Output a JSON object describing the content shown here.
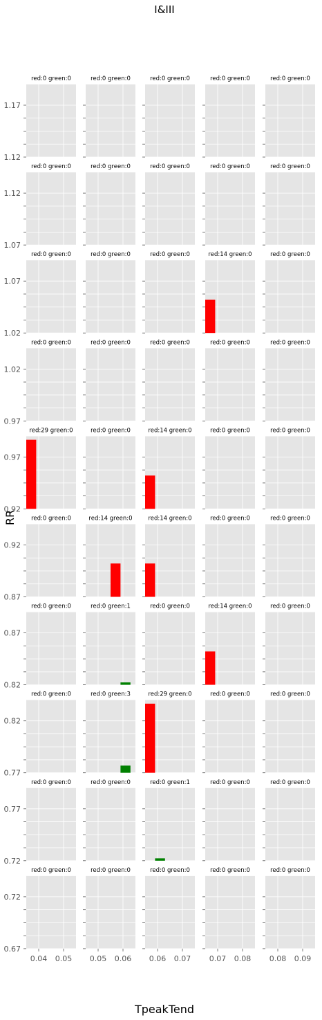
{
  "chart_data": {
    "type": "bar",
    "title": "I&III",
    "xlabel": "TpeakTend",
    "ylabel": "RR",
    "grid": true,
    "colors": {
      "red": "#ff0000",
      "green": "#008000",
      "panel_bg": "#e5e5e5"
    },
    "columns": [
      {
        "xlim": [
          0.035,
          0.055
        ],
        "ticks": [
          0.04,
          0.05
        ],
        "tick_labels": [
          "0.04",
          "0.05"
        ],
        "bar_x": 0.035
      },
      {
        "xlim": [
          0.045,
          0.065
        ],
        "ticks": [
          0.05,
          0.06
        ],
        "tick_labels": [
          "0.05",
          "0.06"
        ],
        "bar_x": 0.055
      },
      {
        "xlim": [
          0.055,
          0.075
        ],
        "ticks": [
          0.06,
          0.07
        ],
        "tick_labels": [
          "0.06",
          "0.07"
        ],
        "bar_x": 0.055
      },
      {
        "xlim": [
          0.065,
          0.085
        ],
        "ticks": [
          0.07,
          0.08
        ],
        "tick_labels": [
          "0.07",
          "0.08"
        ],
        "bar_x": 0.065
      },
      {
        "xlim": [
          0.075,
          0.095
        ],
        "ticks": [
          0.08,
          0.09
        ],
        "tick_labels": [
          "0.08",
          "0.09"
        ],
        "bar_x": 0.075
      }
    ],
    "bar_width": 0.004,
    "rows": [
      {
        "ylim": [
          1.12,
          1.19
        ],
        "tick_labels": [
          "1.12",
          "1.17"
        ],
        "ticks": [
          1.12,
          1.17
        ],
        "panels": [
          {
            "title": "red:0 green:0",
            "red": 0,
            "green": 0
          },
          {
            "title": "red:0 green:0",
            "red": 0,
            "green": 0
          },
          {
            "title": "red:0 green:0",
            "red": 0,
            "green": 0
          },
          {
            "title": "red:0 green:0",
            "red": 0,
            "green": 0
          },
          {
            "title": "red:0 green:0",
            "red": 0,
            "green": 0
          }
        ]
      },
      {
        "ylim": [
          1.07,
          1.14
        ],
        "tick_labels": [
          "1.07",
          "1.12"
        ],
        "ticks": [
          1.07,
          1.12
        ],
        "panels": [
          {
            "title": "red:0 green:0",
            "red": 0,
            "green": 0
          },
          {
            "title": "red:0 green:0",
            "red": 0,
            "green": 0
          },
          {
            "title": "red:0 green:0",
            "red": 0,
            "green": 0
          },
          {
            "title": "red:0 green:0",
            "red": 0,
            "green": 0
          },
          {
            "title": "red:0 green:0",
            "red": 0,
            "green": 0
          }
        ]
      },
      {
        "ylim": [
          1.02,
          1.09
        ],
        "tick_labels": [
          "1.02",
          "1.07"
        ],
        "ticks": [
          1.02,
          1.07
        ],
        "panels": [
          {
            "title": "red:0 green:0",
            "red": 0,
            "green": 0
          },
          {
            "title": "red:0 green:0",
            "red": 0,
            "green": 0
          },
          {
            "title": "red:0 green:0",
            "red": 0,
            "green": 0
          },
          {
            "title": "red:14 green:0",
            "red": 14,
            "green": 0
          },
          {
            "title": "red:0 green:0",
            "red": 0,
            "green": 0
          }
        ]
      },
      {
        "ylim": [
          0.97,
          1.04
        ],
        "tick_labels": [
          "0.97",
          "1.02"
        ],
        "ticks": [
          0.97,
          1.02
        ],
        "panels": [
          {
            "title": "red:0 green:0",
            "red": 0,
            "green": 0
          },
          {
            "title": "red:0 green:0",
            "red": 0,
            "green": 0
          },
          {
            "title": "red:0 green:0",
            "red": 0,
            "green": 0
          },
          {
            "title": "red:0 green:0",
            "red": 0,
            "green": 0
          },
          {
            "title": "red:0 green:0",
            "red": 0,
            "green": 0
          }
        ]
      },
      {
        "ylim": [
          0.92,
          0.99
        ],
        "tick_labels": [
          "0.92",
          "0.97"
        ],
        "ticks": [
          0.92,
          0.97
        ],
        "panels": [
          {
            "title": "red:29 green:0",
            "red": 29,
            "green": 0
          },
          {
            "title": "red:0 green:0",
            "red": 0,
            "green": 0
          },
          {
            "title": "red:14 green:0",
            "red": 14,
            "green": 0
          },
          {
            "title": "red:0 green:0",
            "red": 0,
            "green": 0
          },
          {
            "title": "red:0 green:0",
            "red": 0,
            "green": 0
          }
        ]
      },
      {
        "ylim": [
          0.87,
          0.94
        ],
        "tick_labels": [
          "0.87",
          "0.92"
        ],
        "ticks": [
          0.87,
          0.92
        ],
        "panels": [
          {
            "title": "red:0 green:0",
            "red": 0,
            "green": 0
          },
          {
            "title": "red:14 green:0",
            "red": 14,
            "green": 0
          },
          {
            "title": "red:14 green:0",
            "red": 14,
            "green": 0
          },
          {
            "title": "red:0 green:0",
            "red": 0,
            "green": 0
          },
          {
            "title": "red:0 green:0",
            "red": 0,
            "green": 0
          }
        ]
      },
      {
        "ylim": [
          0.82,
          0.89
        ],
        "tick_labels": [
          "0.82",
          "0.87"
        ],
        "ticks": [
          0.82,
          0.87
        ],
        "panels": [
          {
            "title": "red:0 green:0",
            "red": 0,
            "green": 0
          },
          {
            "title": "red:0 green:1",
            "red": 0,
            "green": 1
          },
          {
            "title": "red:0 green:0",
            "red": 0,
            "green": 0
          },
          {
            "title": "red:14 green:0",
            "red": 14,
            "green": 0
          },
          {
            "title": "red:0 green:0",
            "red": 0,
            "green": 0
          }
        ]
      },
      {
        "ylim": [
          0.77,
          0.84
        ],
        "tick_labels": [
          "0.77",
          "0.82"
        ],
        "ticks": [
          0.77,
          0.82
        ],
        "panels": [
          {
            "title": "red:0 green:0",
            "red": 0,
            "green": 0
          },
          {
            "title": "red:0 green:3",
            "red": 0,
            "green": 3
          },
          {
            "title": "red:29 green:0",
            "red": 29,
            "green": 0
          },
          {
            "title": "red:0 green:0",
            "red": 0,
            "green": 0
          },
          {
            "title": "red:0 green:0",
            "red": 0,
            "green": 0
          }
        ]
      },
      {
        "ylim": [
          0.72,
          0.79
        ],
        "tick_labels": [
          "0.72",
          "0.77"
        ],
        "ticks": [
          0.72,
          0.77
        ],
        "panels": [
          {
            "title": "red:0 green:0",
            "red": 0,
            "green": 0
          },
          {
            "title": "red:0 green:0",
            "red": 0,
            "green": 0
          },
          {
            "title": "red:0 green:1",
            "red": 0,
            "green": 1
          },
          {
            "title": "red:0 green:0",
            "red": 0,
            "green": 0
          },
          {
            "title": "red:0 green:0",
            "red": 0,
            "green": 0
          }
        ]
      },
      {
        "ylim": [
          0.67,
          0.74
        ],
        "tick_labels": [
          "0.67",
          "0.72"
        ],
        "ticks": [
          0.67,
          0.72
        ],
        "panels": [
          {
            "title": "red:0 green:0",
            "red": 0,
            "green": 0
          },
          {
            "title": "red:0 green:0",
            "red": 0,
            "green": 0
          },
          {
            "title": "red:0 green:0",
            "red": 0,
            "green": 0
          },
          {
            "title": "red:0 green:0",
            "red": 0,
            "green": 0
          },
          {
            "title": "red:0 green:0",
            "red": 0,
            "green": 0
          }
        ]
      }
    ]
  }
}
